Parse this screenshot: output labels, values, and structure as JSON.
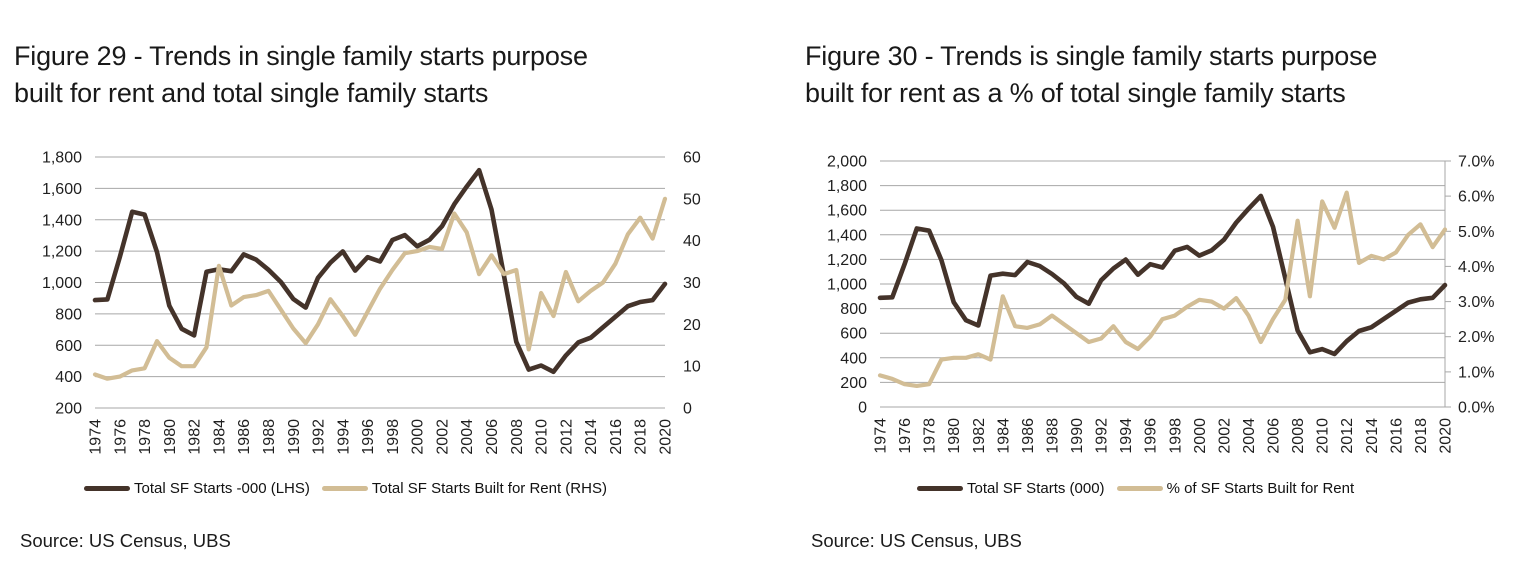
{
  "colors": {
    "dark_line": "#44332a",
    "tan_line": "#d2bd95",
    "gridline": "#a7a7a7",
    "axis_text": "#1f1f1f"
  },
  "figures": [
    {
      "title": "Figure 29 - Trends in single family starts purpose built for rent and total single family starts",
      "title_lines": [
        "Figure 29 - Trends in single family starts purpose",
        "built for rent and total single family starts"
      ],
      "source": "Source: US Census, UBS",
      "chart_data": {
        "type": "line",
        "title": "Figure 29 - Trends in single family starts purpose built for rent and total single family starts",
        "grid": true,
        "legend_position": "bottom",
        "x_tick_interval": 2,
        "x": [
          1974,
          1975,
          1976,
          1977,
          1978,
          1979,
          1980,
          1981,
          1982,
          1983,
          1984,
          1985,
          1986,
          1987,
          1988,
          1989,
          1990,
          1991,
          1992,
          1993,
          1994,
          1995,
          1996,
          1997,
          1998,
          1999,
          2000,
          2001,
          2002,
          2003,
          2004,
          2005,
          2006,
          2007,
          2008,
          2009,
          2010,
          2011,
          2012,
          2013,
          2014,
          2015,
          2016,
          2017,
          2018,
          2019,
          2020
        ],
        "left_axis": {
          "min": 200,
          "max": 1800,
          "step": 200,
          "format": "thousands"
        },
        "right_axis": {
          "min": 0,
          "max": 60,
          "step": 10,
          "format": "integer",
          "axis_line": false
        },
        "series": [
          {
            "name": "Total SF Starts -000 (LHS)",
            "axis": "left",
            "color_key": "dark_line",
            "values": [
              888,
              892,
              1162,
              1451,
              1433,
              1194,
              852,
              705,
              663,
              1068,
              1084,
              1072,
              1179,
              1146,
              1081,
              1003,
              895,
              840,
              1030,
              1126,
              1198,
              1076,
              1161,
              1134,
              1271,
              1302,
              1231,
              1273,
              1359,
              1499,
              1611,
              1716,
              1465,
              1046,
              622,
              445,
              471,
              431,
              535,
              618,
              648,
              715,
              782,
              849,
              876,
              888,
              991
            ]
          },
          {
            "name": "Total SF Starts Built for Rent (RHS)",
            "axis": "right",
            "color_key": "tan_line",
            "values": [
              8,
              7,
              7.5,
              9,
              9.5,
              16,
              12,
              10,
              10,
              14.5,
              34,
              24.5,
              26.5,
              27,
              28,
              23.5,
              19,
              15.5,
              20,
              26,
              22,
              17.5,
              23,
              28.5,
              33,
              37,
              37.5,
              38.5,
              38,
              46.5,
              42,
              32,
              36.5,
              32,
              33,
              14,
              27.5,
              22,
              32.5,
              25.5,
              28,
              30,
              34.5,
              41.5,
              45.5,
              40.5,
              50
            ]
          }
        ]
      }
    },
    {
      "title": "Figure 30 - Trends is single family starts purpose built for rent as a % of total single family starts",
      "title_lines": [
        "Figure 30 - Trends is single family starts purpose",
        "built for rent as a % of total single family starts"
      ],
      "source": "Source: US Census, UBS",
      "chart_data": {
        "type": "line",
        "title": "Figure 30 - Trends is single family starts purpose built for rent as a % of total single family starts",
        "grid": true,
        "legend_position": "bottom",
        "x_tick_interval": 2,
        "x": [
          1974,
          1975,
          1976,
          1977,
          1978,
          1979,
          1980,
          1981,
          1982,
          1983,
          1984,
          1985,
          1986,
          1987,
          1988,
          1989,
          1990,
          1991,
          1992,
          1993,
          1994,
          1995,
          1996,
          1997,
          1998,
          1999,
          2000,
          2001,
          2002,
          2003,
          2004,
          2005,
          2006,
          2007,
          2008,
          2009,
          2010,
          2011,
          2012,
          2013,
          2014,
          2015,
          2016,
          2017,
          2018,
          2019,
          2020
        ],
        "left_axis": {
          "min": 0,
          "max": 2000,
          "step": 200,
          "format": "thousands"
        },
        "right_axis": {
          "min": 0,
          "max": 7,
          "step": 1,
          "format": "percent1",
          "axis_line": true
        },
        "series": [
          {
            "name": "Total SF Starts (000)",
            "axis": "left",
            "color_key": "dark_line",
            "values": [
              888,
              892,
              1162,
              1451,
              1433,
              1194,
              852,
              705,
              663,
              1068,
              1084,
              1072,
              1179,
              1146,
              1081,
              1003,
              895,
              840,
              1030,
              1126,
              1198,
              1076,
              1161,
              1134,
              1271,
              1302,
              1231,
              1273,
              1359,
              1499,
              1611,
              1716,
              1465,
              1046,
              622,
              445,
              471,
              431,
              535,
              618,
              648,
              715,
              782,
              849,
              876,
              888,
              991
            ]
          },
          {
            "name": "% of SF Starts Built for Rent",
            "axis": "right",
            "color_key": "tan_line",
            "values": [
              0.9,
              0.8,
              0.65,
              0.6,
              0.65,
              1.35,
              1.4,
              1.4,
              1.5,
              1.35,
              3.15,
              2.3,
              2.25,
              2.35,
              2.6,
              2.35,
              2.1,
              1.85,
              1.95,
              2.3,
              1.85,
              1.65,
              2.0,
              2.5,
              2.6,
              2.85,
              3.05,
              3.0,
              2.8,
              3.1,
              2.6,
              1.85,
              2.5,
              3.05,
              5.3,
              3.15,
              5.85,
              5.1,
              6.1,
              4.1,
              4.3,
              4.2,
              4.4,
              4.9,
              5.2,
              4.55,
              5.05
            ]
          }
        ]
      }
    }
  ]
}
